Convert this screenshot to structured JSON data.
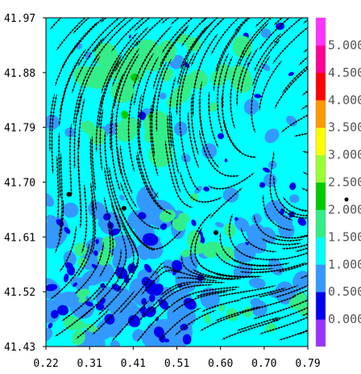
{
  "chart_data": {
    "type": "heatmap",
    "title": "",
    "xlabel": "",
    "ylabel": "",
    "xlim": [
      0.22,
      0.79
    ],
    "ylim": [
      41.43,
      41.97
    ],
    "x_ticks": [
      "0.22",
      "0.31",
      "0.41",
      "0.51",
      "0.60",
      "0.70",
      "0.79"
    ],
    "y_ticks": [
      "41.97",
      "41.88",
      "41.79",
      "41.70",
      "41.61",
      "41.52",
      "41.43"
    ],
    "colorbar": {
      "levels": [
        "0.000",
        "0.500",
        "1.000",
        "1.500",
        "2.000",
        "2.500",
        "3.000",
        "3.500",
        "4.000",
        "4.500",
        "5.000"
      ],
      "colors": [
        "#9933ff",
        "#0000ee",
        "#3399ff",
        "#00ffff",
        "#33ee88",
        "#00cc00",
        "#99ff33",
        "#ffff00",
        "#ff9900",
        "#ff0000",
        "#ff0099",
        "#ff33ff"
      ]
    },
    "field_colors": {
      "dominant": "#00ffff",
      "low": "#3399ff",
      "very_low": "#0000ee",
      "high": "#33ee88",
      "higher": "#00cc00"
    },
    "markers": [
      {
        "kind": "x",
        "x": 0.46,
        "y": 41.68
      },
      {
        "kind": "dot",
        "x": 0.39,
        "y": 41.657
      },
      {
        "kind": "dot",
        "x": 0.59,
        "y": 41.617
      },
      {
        "kind": "dot",
        "x": 0.27,
        "y": 41.68
      }
    ],
    "grid": false,
    "legend": "colorbar-right",
    "streamlines": true
  }
}
